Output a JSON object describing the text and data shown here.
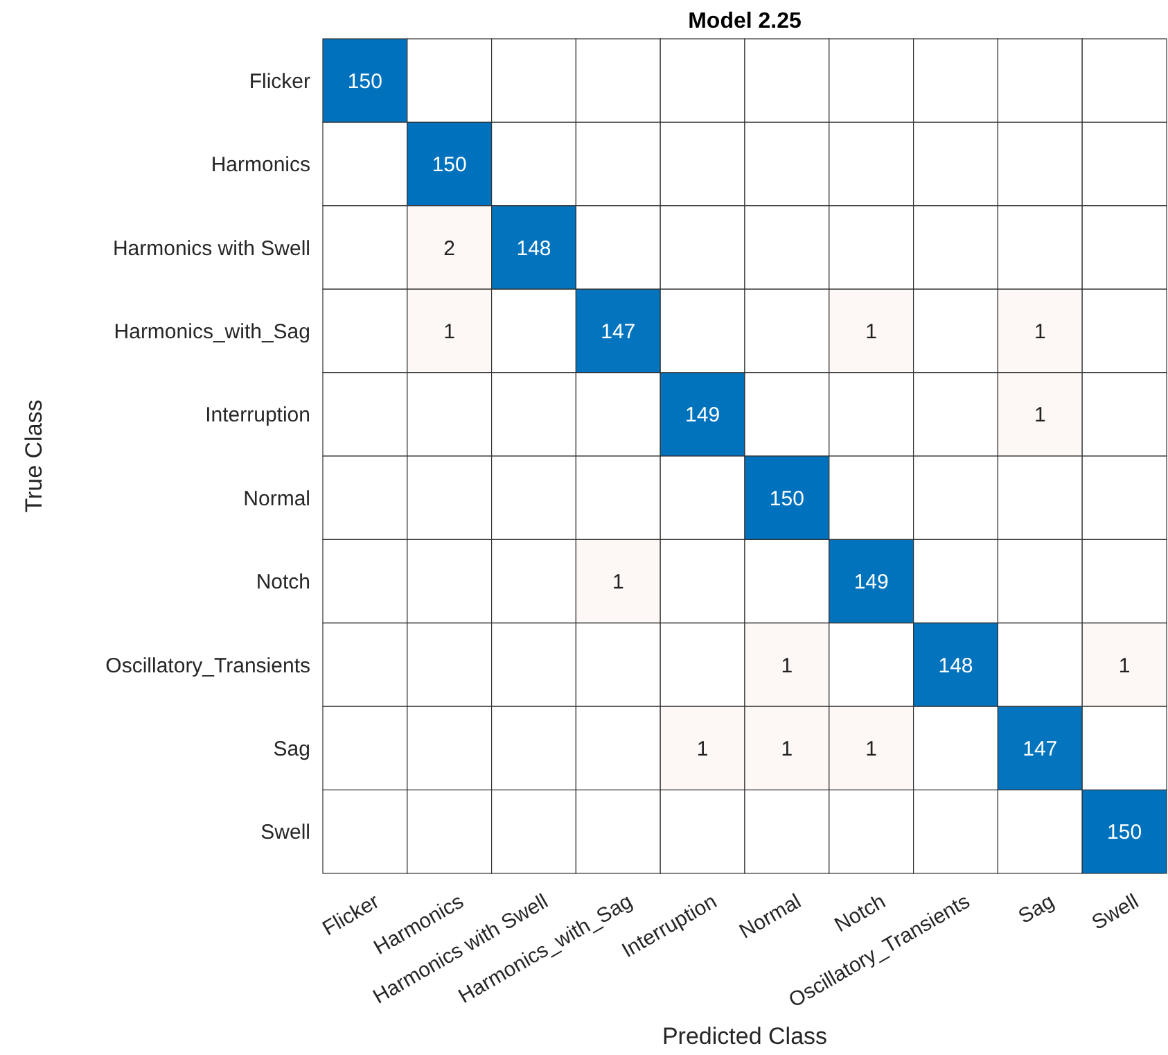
{
  "chart_data": {
    "type": "heatmap",
    "title": "Model 2.25",
    "xlabel": "Predicted Class",
    "ylabel": "True Class",
    "categories": [
      "Flicker",
      "Harmonics",
      "Harmonics with Swell",
      "Harmonics_with_Sag",
      "Interruption",
      "Normal",
      "Notch",
      "Oscillatory_Transients",
      "Sag",
      "Swell"
    ],
    "data_labels": true,
    "y_categories": [
      "Flicker",
      "Harmonics",
      "Harmonics with Swell",
      "Harmonics_with_Sag",
      "Interruption",
      "Normal",
      "Notch",
      "Oscillatory_Transients",
      "Sag",
      "Swell"
    ],
    "cells": [
      [
        150,
        null,
        null,
        null,
        null,
        null,
        null,
        null,
        null,
        null
      ],
      [
        null,
        150,
        null,
        null,
        null,
        null,
        null,
        null,
        null,
        null
      ],
      [
        null,
        2,
        148,
        null,
        null,
        null,
        null,
        null,
        null,
        null
      ],
      [
        null,
        1,
        null,
        147,
        null,
        null,
        1,
        null,
        1,
        null
      ],
      [
        null,
        null,
        null,
        null,
        149,
        null,
        null,
        null,
        1,
        null
      ],
      [
        null,
        null,
        null,
        null,
        null,
        150,
        null,
        null,
        null,
        null
      ],
      [
        null,
        null,
        null,
        1,
        null,
        null,
        149,
        null,
        null,
        null
      ],
      [
        null,
        null,
        null,
        null,
        null,
        1,
        null,
        148,
        null,
        1
      ],
      [
        null,
        null,
        null,
        null,
        1,
        1,
        1,
        null,
        147,
        null
      ],
      [
        null,
        null,
        null,
        null,
        null,
        null,
        null,
        null,
        null,
        150
      ]
    ]
  }
}
